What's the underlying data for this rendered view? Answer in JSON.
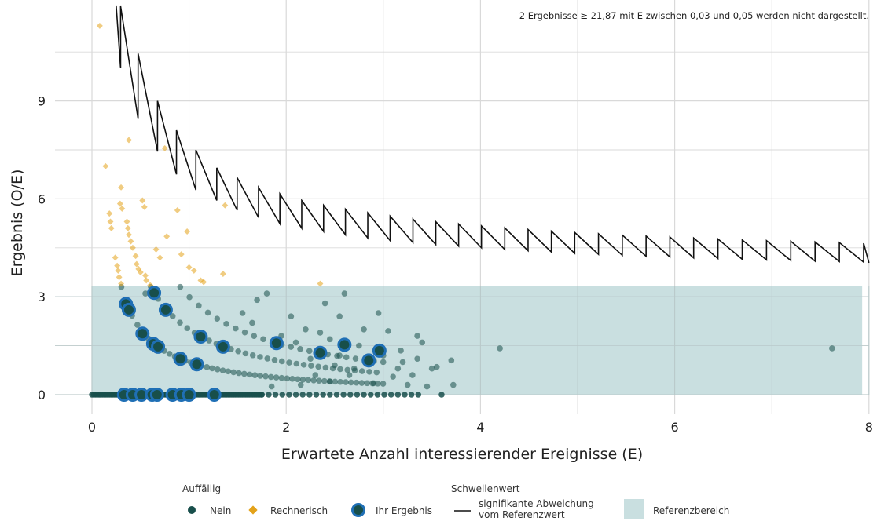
{
  "chart_data": {
    "type": "scatter",
    "note": "2 Ergebnisse ≥ 21,87 mit E zwischen 0,03 und 0,05 werden nicht dargestellt.",
    "xlabel": "Erwartete Anzahl interessierender Ereignisse (E)",
    "ylabel": "Ergebnis (O/E)",
    "xlim": [
      -0.35,
      8.0
    ],
    "ylim": [
      -0.75,
      11.9
    ],
    "x_ticks": [
      0,
      2,
      4,
      6,
      8
    ],
    "x_tick_labels": [
      "0",
      "2",
      "4",
      "6",
      "8"
    ],
    "y_ticks": [
      0,
      3,
      6,
      9
    ],
    "y_tick_labels": [
      "0",
      "3",
      "6",
      "9"
    ],
    "grid": true,
    "reference_range": {
      "x": [
        0,
        7.93
      ],
      "y": [
        0,
        3.32
      ]
    },
    "colors": {
      "nein": "#184f4b",
      "rechnerisch": "#e3a21a",
      "ihr_ergebnis_fill": "#184f4b",
      "ihr_ergebnis_ring": "#1f6fb5",
      "threshold": "#111111",
      "reference": "#c9dfe0",
      "grid": "#d9d9d9"
    },
    "series": [
      {
        "name": "Nein",
        "points": [
          [
            0.55,
            3.1
          ],
          [
            1.8,
            3.1
          ],
          [
            1.55,
            2.5
          ],
          [
            2.4,
            2.8
          ],
          [
            2.55,
            2.4
          ],
          [
            2.6,
            3.1
          ],
          [
            2.05,
            2.4
          ],
          [
            2.95,
            2.5
          ],
          [
            3.05,
            1.95
          ],
          [
            3.4,
            1.6
          ],
          [
            3.35,
            1.8
          ],
          [
            3.7,
            1.05
          ],
          [
            3.5,
            0.8
          ],
          [
            3.72,
            0.3
          ],
          [
            3.3,
            0.6
          ],
          [
            3.2,
            1.0
          ],
          [
            3.1,
            0.55
          ],
          [
            2.9,
            0.35
          ],
          [
            3.25,
            0.3
          ],
          [
            3.45,
            0.25
          ],
          [
            3.6,
            0.0
          ],
          [
            3.0,
            1.2
          ],
          [
            2.85,
            1.0
          ],
          [
            2.75,
            1.5
          ],
          [
            2.7,
            0.8
          ],
          [
            2.55,
            1.2
          ],
          [
            2.65,
            0.6
          ],
          [
            2.5,
            0.9
          ],
          [
            2.45,
            0.4
          ],
          [
            2.35,
            1.9
          ],
          [
            2.2,
            2.0
          ],
          [
            2.1,
            1.6
          ],
          [
            1.95,
            1.8
          ],
          [
            4.2,
            1.42
          ],
          [
            7.62,
            1.42
          ],
          [
            2.25,
            1.1
          ],
          [
            2.45,
            1.7
          ],
          [
            3.18,
            1.35
          ],
          [
            3.55,
            0.85
          ],
          [
            3.35,
            1.1
          ],
          [
            3.15,
            0.8
          ],
          [
            2.8,
            2.0
          ],
          [
            1.7,
            2.9
          ],
          [
            1.65,
            2.2
          ],
          [
            2.3,
            0.6
          ],
          [
            2.15,
            0.3
          ],
          [
            1.85,
            0.25
          ]
        ]
      },
      {
        "name": "Rechnerisch",
        "points": [
          [
            0.08,
            11.3
          ],
          [
            0.14,
            7.0
          ],
          [
            0.18,
            5.55
          ],
          [
            0.19,
            5.3
          ],
          [
            0.2,
            5.1
          ],
          [
            0.24,
            4.2
          ],
          [
            0.26,
            3.95
          ],
          [
            0.27,
            3.8
          ],
          [
            0.28,
            3.6
          ],
          [
            0.3,
            3.4
          ],
          [
            0.3,
            6.35
          ],
          [
            0.29,
            5.85
          ],
          [
            0.31,
            5.7
          ],
          [
            0.36,
            5.3
          ],
          [
            0.37,
            5.1
          ],
          [
            0.38,
            4.9
          ],
          [
            0.38,
            7.8
          ],
          [
            0.4,
            4.7
          ],
          [
            0.42,
            4.5
          ],
          [
            0.45,
            4.25
          ],
          [
            0.46,
            4.0
          ],
          [
            0.48,
            3.85
          ],
          [
            0.5,
            3.75
          ],
          [
            0.52,
            5.95
          ],
          [
            0.54,
            5.75
          ],
          [
            0.55,
            3.65
          ],
          [
            0.56,
            3.5
          ],
          [
            0.6,
            3.35
          ],
          [
            0.62,
            3.2
          ],
          [
            0.66,
            4.45
          ],
          [
            0.7,
            4.2
          ],
          [
            0.75,
            7.55
          ],
          [
            0.77,
            4.85
          ],
          [
            0.88,
            5.65
          ],
          [
            0.92,
            4.3
          ],
          [
            0.98,
            5.0
          ],
          [
            1.0,
            3.9
          ],
          [
            1.05,
            3.8
          ],
          [
            1.12,
            3.5
          ],
          [
            1.15,
            3.45
          ],
          [
            1.35,
            3.7
          ],
          [
            1.37,
            5.8
          ],
          [
            2.35,
            3.4
          ]
        ]
      },
      {
        "name": "Ihr Ergebnis",
        "points": [
          [
            0.35,
            2.78
          ],
          [
            0.38,
            2.6
          ],
          [
            0.52,
            1.87
          ],
          [
            0.63,
            1.56
          ],
          [
            0.68,
            1.47
          ],
          [
            0.64,
            3.12
          ],
          [
            0.76,
            2.6
          ],
          [
            0.91,
            1.1
          ],
          [
            1.08,
            0.93
          ],
          [
            1.12,
            1.78
          ],
          [
            1.35,
            1.47
          ],
          [
            1.9,
            1.58
          ],
          [
            2.35,
            1.28
          ],
          [
            2.6,
            1.53
          ],
          [
            2.85,
            1.05
          ],
          [
            2.96,
            1.35
          ],
          [
            0.33,
            0.0
          ],
          [
            0.42,
            0.0
          ],
          [
            0.51,
            0.0
          ],
          [
            0.62,
            0.0
          ],
          [
            0.67,
            0.0
          ],
          [
            0.83,
            0.0
          ],
          [
            0.92,
            0.0
          ],
          [
            1.0,
            0.0
          ],
          [
            1.26,
            0.0
          ]
        ]
      }
    ],
    "threshold_line": {
      "name": "signifikante Abweichung vom Referenzwert",
      "x_from": 0.25,
      "x_to": 8.0,
      "steps_x": [
        0.295,
        0.475,
        0.675,
        0.87,
        1.07,
        1.285,
        1.495,
        1.715,
        1.935,
        2.16,
        2.385,
        2.61,
        2.84,
        3.07,
        3.305,
        3.54,
        3.775,
        4.01,
        4.25,
        4.49,
        4.73,
        4.97,
        5.215,
        5.46,
        5.705,
        5.95,
        6.195,
        6.445,
        6.695,
        6.945,
        7.195,
        7.445,
        7.695,
        7.945
      ],
      "drop_to": [
        10.0,
        8.45,
        7.45,
        6.75,
        6.27,
        5.95,
        5.65,
        5.43,
        5.24,
        5.1,
        5.0,
        4.9,
        4.8,
        4.72,
        4.66,
        4.6,
        4.55,
        4.5,
        4.45,
        4.41,
        4.37,
        4.33,
        4.3,
        4.27,
        4.24,
        4.22,
        4.19,
        4.17,
        4.15,
        4.13,
        4.11,
        4.09,
        4.08,
        4.06
      ],
      "jump_to": [
        11.9,
        10.45,
        9.0,
        8.1,
        7.5,
        6.95,
        6.65,
        6.35,
        6.15,
        5.95,
        5.8,
        5.68,
        5.57,
        5.47,
        5.38,
        5.3,
        5.23,
        5.17,
        5.11,
        5.06,
        5.01,
        4.97,
        4.93,
        4.89,
        4.86,
        4.83,
        4.8,
        4.77,
        4.74,
        4.72,
        4.7,
        4.68,
        4.66,
        4.64
      ]
    },
    "legend": {
      "group1_title": "Auffällig",
      "item_nein": "Nein",
      "item_rechnerisch": "Rechnerisch",
      "item_ihr": "Ihr Ergebnis",
      "group2_title": "Schwellenwert",
      "item_threshold_line1": "signifikante Abweichung",
      "item_threshold_line2": "vom Referenzwert",
      "item_reference": "Referenzbereich"
    }
  }
}
